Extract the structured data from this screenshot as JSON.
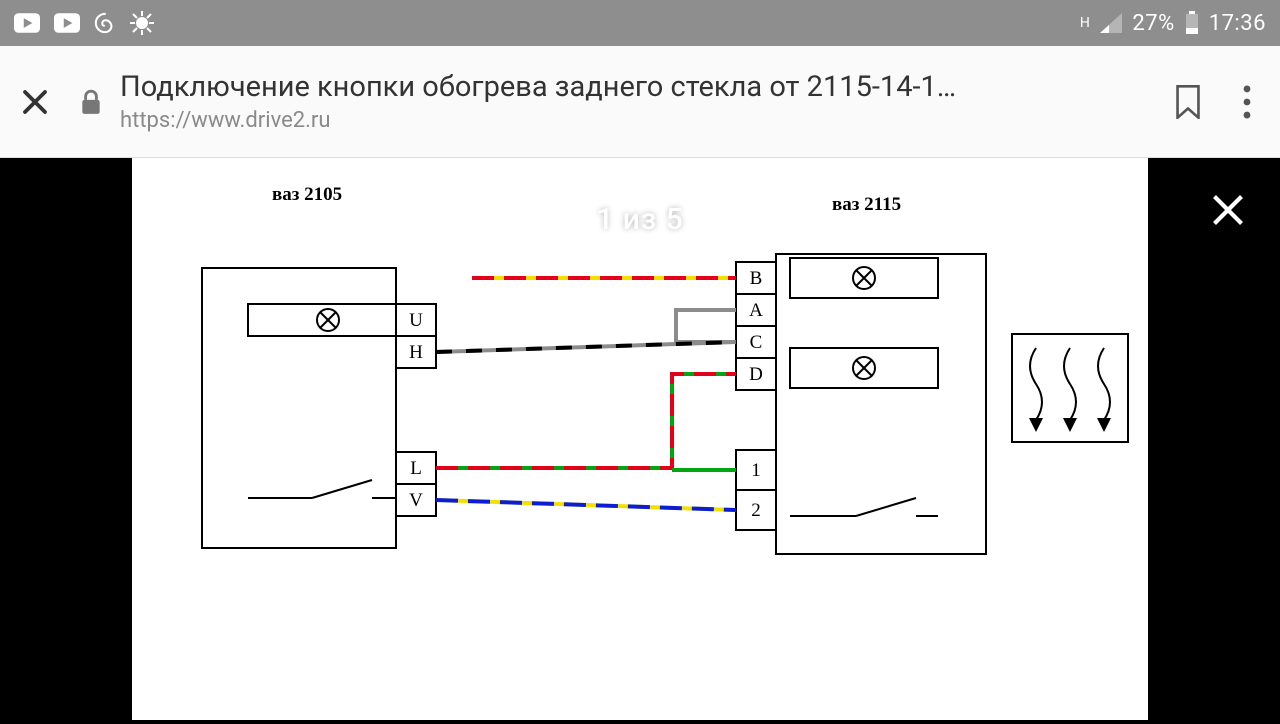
{
  "status_bar": {
    "bg": "#8e8e8e",
    "battery_pct": "27%",
    "clock": "17:36",
    "net_label": "H"
  },
  "browser": {
    "title": "Подключение кнопки обогрева заднего стекла от 2115-14-1…",
    "url": "https://www.drive2.ru"
  },
  "viewer": {
    "counter": "1 из 5"
  },
  "diagram": {
    "left_title": "ваз 2105",
    "right_title": "ваз 2115",
    "left_terminals": [
      "U",
      "H",
      "L",
      "V"
    ],
    "right_terminals_top": [
      "B",
      "A",
      "C",
      "D"
    ],
    "right_terminals_bot": [
      "1",
      "2"
    ],
    "label_font": "Times New Roman",
    "stroke_black": "#000000",
    "wire_yellow": "#f2e100",
    "wire_red": "#e2001a",
    "wire_grey": "#8c8c8c",
    "wire_green": "#00a611",
    "wire_blue": "#0b1ed1",
    "line_w_thin": 2,
    "line_w_wire": 4,
    "dash_long": "22 10",
    "dash_short": "16 14"
  }
}
